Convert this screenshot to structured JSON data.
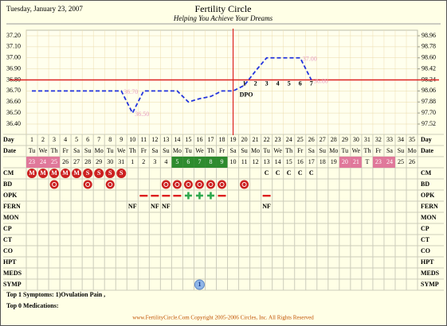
{
  "header": {
    "date": "Tuesday, January 23, 2007",
    "title": "Fertility Circle",
    "subtitle": "Helping You Achieve Your Dreams"
  },
  "chart_data": {
    "type": "line",
    "x": [
      1,
      2,
      3,
      4,
      5,
      6,
      7,
      8,
      9,
      10,
      11,
      12,
      13,
      14,
      15,
      16,
      17,
      18,
      19,
      20,
      21,
      22,
      23,
      24,
      25,
      26,
      27,
      28,
      29,
      30,
      31,
      32,
      33,
      34,
      35
    ],
    "xlim": [
      1,
      35
    ],
    "values": [
      36.7,
      36.7,
      36.7,
      36.7,
      36.7,
      36.7,
      36.7,
      36.7,
      36.7,
      36.5,
      36.7,
      36.7,
      36.7,
      36.7,
      36.6,
      36.63,
      36.65,
      36.7,
      36.7,
      36.75,
      36.88,
      37.0,
      37.0,
      37.0,
      37.0,
      36.8,
      null,
      null,
      null,
      null,
      null,
      null,
      null,
      null,
      null
    ],
    "value_labels": [
      null,
      null,
      null,
      null,
      null,
      null,
      null,
      null,
      "36.70",
      "36.50",
      null,
      null,
      null,
      null,
      null,
      null,
      null,
      null,
      null,
      null,
      null,
      null,
      null,
      null,
      "37.00",
      "36.80",
      null,
      null,
      null,
      null,
      null,
      null,
      null,
      null,
      null
    ],
    "color": "#2233dd",
    "ylim": [
      36.4,
      37.2
    ],
    "yticks": [
      {
        "value": 37.2,
        "label": "37.20"
      },
      {
        "value": 37.1,
        "label": "37.10"
      },
      {
        "value": 37.0,
        "label": "37.00"
      },
      {
        "value": 36.9,
        "label": "36.90"
      },
      {
        "value": 36.8,
        "label": "36.80"
      },
      {
        "value": 36.7,
        "label": "36.70"
      },
      {
        "value": 36.6,
        "label": "36.60"
      },
      {
        "value": 36.5,
        "label": "36.50"
      },
      {
        "value": 36.4,
        "label": "36.40"
      }
    ],
    "y2lim": [
      97.52,
      98.96
    ],
    "y2ticks": [
      98.96,
      98.78,
      {
        "value": 98.6,
        "label": "98.60"
      },
      98.42,
      98.24,
      98.06,
      97.88,
      {
        "value": 97.7,
        "label": "97.70"
      },
      97.52
    ],
    "grid": true,
    "coverline": 36.8,
    "coverline_color": "#dd2222",
    "ovulation_day": 19,
    "dpo_label": "DPO",
    "dpo": [
      null,
      null,
      null,
      null,
      null,
      null,
      null,
      null,
      null,
      null,
      null,
      null,
      null,
      null,
      null,
      null,
      null,
      null,
      null,
      1,
      2,
      3,
      4,
      5,
      6,
      7,
      null,
      null,
      null,
      null,
      null,
      null,
      null,
      null,
      null
    ]
  },
  "grid": {
    "day_label": "Day",
    "date_label": "Date",
    "weekdays": [
      "Tu",
      "We",
      "Th",
      "Fr",
      "Sa",
      "Su",
      "Mo",
      "Tu",
      "We",
      "Th",
      "Fr",
      "Sa",
      "Su",
      "Mo",
      "Tu",
      "We",
      "Th",
      "Fr",
      "Sa",
      "Su",
      "Mo",
      "Tu",
      "We",
      "Th",
      "Fr",
      "Sa",
      "Su",
      "Mo",
      "Tu",
      "We",
      "Th",
      "Fr",
      "Sa",
      "Su",
      "Mo"
    ],
    "dates": [
      23,
      24,
      25,
      26,
      27,
      28,
      29,
      30,
      31,
      1,
      2,
      3,
      4,
      5,
      6,
      7,
      8,
      9,
      10,
      11,
      12,
      13,
      14,
      15,
      16,
      17,
      18,
      19,
      20,
      21,
      "T",
      23,
      24,
      25,
      26
    ],
    "date_colors": [
      "#e0789a",
      "#e0789a",
      "#e0789a",
      null,
      null,
      null,
      null,
      null,
      null,
      null,
      null,
      null,
      null,
      "#2e8b2e",
      "#2e8b2e",
      "#2e8b2e",
      "#2e8b2e",
      "#2e8b2e",
      null,
      null,
      null,
      null,
      null,
      null,
      null,
      null,
      null,
      null,
      "#e0789a",
      "#e0789a",
      null,
      "#e0789a",
      "#e0789a",
      null,
      null
    ],
    "rows": [
      "CM",
      "BD",
      "OPK",
      "FERN",
      "MON",
      "CP",
      "CT",
      "CO",
      "HPT",
      "MEDS",
      "SYMP"
    ],
    "cm": [
      "M",
      "M",
      "M",
      "M",
      "M",
      "S",
      "S",
      "S",
      "S",
      null,
      null,
      null,
      null,
      null,
      null,
      null,
      null,
      null,
      null,
      null,
      null,
      "C",
      "C",
      "C",
      "C",
      "C",
      null,
      null,
      null,
      null,
      null,
      null,
      null,
      null,
      null
    ],
    "bd": [
      null,
      null,
      true,
      null,
      null,
      true,
      null,
      true,
      null,
      null,
      null,
      null,
      true,
      true,
      true,
      true,
      true,
      true,
      null,
      true,
      null,
      null,
      null,
      null,
      null,
      null,
      null,
      null,
      null,
      null,
      null,
      null,
      null,
      null,
      null
    ],
    "opk": [
      null,
      null,
      null,
      null,
      null,
      null,
      null,
      null,
      null,
      null,
      false,
      false,
      false,
      false,
      true,
      true,
      true,
      false,
      null,
      null,
      null,
      false,
      null,
      null,
      null,
      null,
      null,
      null,
      null,
      null,
      null,
      null,
      null,
      null,
      null
    ],
    "fern": [
      null,
      null,
      null,
      null,
      null,
      null,
      null,
      null,
      null,
      "NF",
      null,
      "NF",
      "NF",
      null,
      null,
      null,
      null,
      null,
      null,
      null,
      null,
      "NF",
      null,
      null,
      null,
      null,
      null,
      null,
      null,
      null,
      null,
      null,
      null,
      null,
      null
    ],
    "symp": [
      null,
      null,
      null,
      null,
      null,
      null,
      null,
      null,
      null,
      null,
      null,
      null,
      null,
      null,
      null,
      1,
      null,
      null,
      null,
      null,
      null,
      null,
      null,
      null,
      null,
      null,
      null,
      null,
      null,
      null,
      null,
      null,
      null,
      null,
      null
    ]
  },
  "notes": {
    "symptoms": "Top 1 Symptoms: 1)Ovulation Pain ,",
    "medications": "Top 0 Medications:"
  },
  "footer": "www.FertilityCircle.Com Copyright 2005-2006 Circles, Inc. All Rights Reserved"
}
